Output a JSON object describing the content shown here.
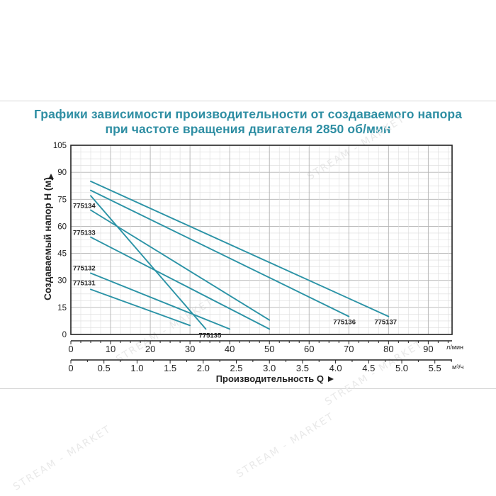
{
  "page": {
    "title_line1": "Графики зависимости производительности от создаваемого напора",
    "title_line2": "при частоте вращения двигателя 2850 об/мин",
    "watermark": "STREAM - MARKET"
  },
  "colors": {
    "curve": "#2b93a6",
    "title": "#2e8ea3",
    "grid": "#bdbdbd",
    "axis": "#222222"
  },
  "chart_data": {
    "type": "line",
    "ylabel": "Создаваемый напор H (м)",
    "xlabel": "Производительность Q",
    "x_unit_primary": "л/мин",
    "x_unit_secondary": "м³/ч",
    "xlim": [
      0,
      96
    ],
    "ylim": [
      0,
      105
    ],
    "grid": true,
    "y_ticks": [
      0,
      15,
      30,
      45,
      60,
      75,
      90,
      105
    ],
    "x_ticks_primary": [
      0,
      10,
      20,
      30,
      40,
      50,
      60,
      70,
      80,
      90
    ],
    "x_ticks_secondary": [
      "0",
      "0.5",
      "1.0",
      "1.5",
      "2.0",
      "2.5",
      "3.0",
      "3.5",
      "4.0",
      "4.5",
      "5.0",
      "5.5"
    ],
    "series": [
      {
        "name": "775131",
        "x": [
          5,
          30
        ],
        "y": [
          25,
          5
        ]
      },
      {
        "name": "775132",
        "x": [
          5,
          40
        ],
        "y": [
          34,
          3
        ]
      },
      {
        "name": "775133",
        "x": [
          5,
          50
        ],
        "y": [
          54,
          3
        ]
      },
      {
        "name": "775134",
        "x": [
          5,
          50
        ],
        "y": [
          69,
          8
        ]
      },
      {
        "name": "775135",
        "x": [
          5,
          34
        ],
        "y": [
          77,
          3
        ]
      },
      {
        "name": "775136",
        "x": [
          5,
          70
        ],
        "y": [
          80,
          10
        ]
      },
      {
        "name": "775137",
        "x": [
          5,
          80
        ],
        "y": [
          85,
          10
        ]
      }
    ]
  }
}
